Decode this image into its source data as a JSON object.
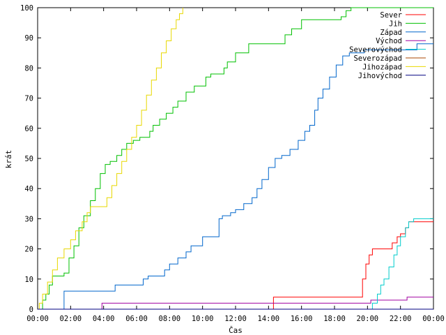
{
  "chart_data": {
    "type": "line",
    "step": true,
    "title": "",
    "xlabel": "Čas",
    "ylabel": "krát",
    "xlim": [
      0,
      24
    ],
    "ylim": [
      0,
      100
    ],
    "x_ticks": [
      {
        "value": 0,
        "label": "00:00"
      },
      {
        "value": 2,
        "label": "02:00"
      },
      {
        "value": 4,
        "label": "04:00"
      },
      {
        "value": 6,
        "label": "06:00"
      },
      {
        "value": 8,
        "label": "08:00"
      },
      {
        "value": 10,
        "label": "10:00"
      },
      {
        "value": 12,
        "label": "12:00"
      },
      {
        "value": 14,
        "label": "14:00"
      },
      {
        "value": 16,
        "label": "16:00"
      },
      {
        "value": 18,
        "label": "18:00"
      },
      {
        "value": 20,
        "label": "20:00"
      },
      {
        "value": 22,
        "label": "22:00"
      },
      {
        "value": 24,
        "label": "00:00"
      }
    ],
    "y_ticks": [
      0,
      10,
      20,
      30,
      40,
      50,
      60,
      70,
      80,
      90,
      100
    ],
    "grid": false,
    "legend_position": "top-right",
    "series": [
      {
        "name": "Sever",
        "color": "#ff0000",
        "x": [
          0,
          14.3,
          14.3,
          19.4,
          19.7,
          19.9,
          20.1,
          20.3,
          21.3,
          21.5,
          21.8,
          22.0,
          22.3,
          22.5,
          24
        ],
        "y": [
          0,
          0,
          4,
          4,
          10,
          15,
          18,
          20,
          20,
          22,
          24,
          25,
          27,
          29,
          29
        ]
      },
      {
        "name": "Jih",
        "color": "#00c000",
        "x": [
          0,
          0.2,
          0.3,
          0.5,
          0.7,
          0.9,
          1.6,
          1.9,
          2.2,
          2.5,
          2.8,
          3.2,
          3.5,
          3.8,
          4.1,
          4.4,
          4.8,
          5.1,
          5.4,
          5.8,
          6.2,
          6.8,
          7.0,
          7.4,
          7.8,
          8.2,
          8.5,
          9.0,
          9.5,
          10.2,
          10.5,
          11.0,
          11.3,
          11.5,
          12.0,
          12.8,
          13.2,
          14.5,
          15.0,
          15.4,
          16.0,
          16.5,
          18.4,
          18.7,
          19.0,
          24
        ],
        "y": [
          0,
          0,
          3,
          5,
          8,
          11,
          12,
          17,
          21,
          27,
          31,
          36,
          40,
          45,
          48,
          49,
          51,
          53,
          55,
          56,
          57,
          59,
          61,
          63,
          65,
          67,
          69,
          72,
          74,
          77,
          78,
          78,
          80,
          82,
          85,
          88,
          88,
          88,
          91,
          93,
          96,
          96,
          97,
          99,
          100,
          100
        ]
      },
      {
        "name": "Západ",
        "color": "#0066cc",
        "x": [
          0,
          1.3,
          1.6,
          4.7,
          6.4,
          6.7,
          7.7,
          8.0,
          8.5,
          9.0,
          9.3,
          10.0,
          11.0,
          11.2,
          11.7,
          12.0,
          12.5,
          13.0,
          13.3,
          13.6,
          14.0,
          14.4,
          14.8,
          15.3,
          15.8,
          16.2,
          16.5,
          16.8,
          17.0,
          17.3,
          17.7,
          18.1,
          18.5,
          18.9,
          19.3,
          19.8,
          20.5,
          21.5,
          22.4,
          23.0,
          24
        ],
        "y": [
          0,
          0,
          6,
          8,
          10,
          11,
          13,
          15,
          17,
          19,
          21,
          24,
          30,
          31,
          32,
          33,
          35,
          37,
          40,
          43,
          47,
          50,
          51,
          53,
          56,
          59,
          61,
          66,
          70,
          73,
          77,
          81,
          84,
          85,
          85,
          86,
          86,
          86,
          86,
          88,
          88
        ]
      },
      {
        "name": "Východ",
        "color": "#a000a0",
        "x": [
          0,
          3.9,
          3.9,
          9.4,
          9.5,
          20.1,
          20.2,
          22.3,
          22.4,
          24
        ],
        "y": [
          0,
          0,
          2,
          2,
          2,
          2,
          3,
          3,
          4,
          4
        ]
      },
      {
        "name": "Severovýchod",
        "color": "#00cccc",
        "x": [
          0,
          20.1,
          20.3,
          20.6,
          20.8,
          21.0,
          21.3,
          21.6,
          21.8,
          22.0,
          22.3,
          22.5,
          22.8,
          24
        ],
        "y": [
          0,
          0,
          2,
          5,
          8,
          10,
          14,
          18,
          21,
          24,
          27,
          29,
          30,
          30
        ]
      },
      {
        "name": "Severozápad",
        "color": "#aa4400",
        "x": [
          0,
          24
        ],
        "y": [
          0,
          0
        ]
      },
      {
        "name": "Jihozápad",
        "color": "#e8d800",
        "x": [
          0,
          0.1,
          0.3,
          0.6,
          0.9,
          1.2,
          1.6,
          2.0,
          2.3,
          2.7,
          3.0,
          3.2,
          4.0,
          4.2,
          4.5,
          4.8,
          5.1,
          5.4,
          5.7,
          6.0,
          6.3,
          6.6,
          6.9,
          7.2,
          7.5,
          7.8,
          8.1,
          8.4,
          8.6,
          8.8
        ],
        "y": [
          0,
          2,
          5,
          9,
          13,
          17,
          20,
          23,
          26,
          29,
          32,
          34,
          34,
          37,
          41,
          45,
          49,
          53,
          57,
          61,
          66,
          71,
          76,
          80,
          85,
          89,
          93,
          96,
          98,
          100
        ]
      },
      {
        "name": "Jihovýchod",
        "color": "#000080",
        "x": [
          0,
          24
        ],
        "y": [
          0,
          0
        ]
      }
    ]
  }
}
